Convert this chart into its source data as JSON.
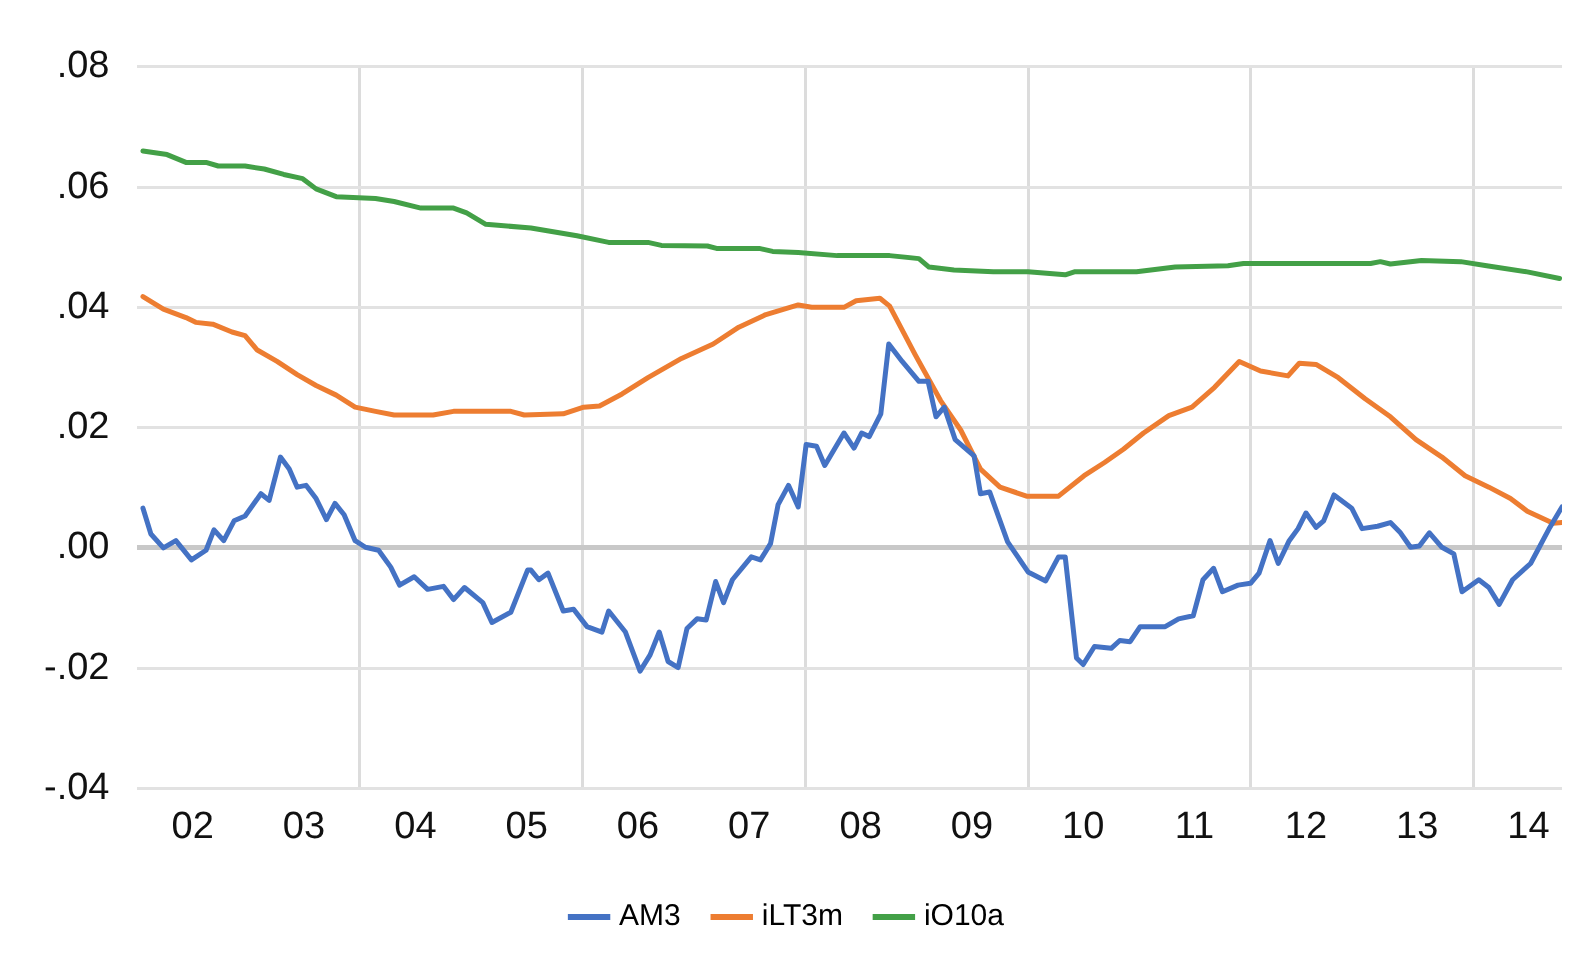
{
  "chart_data": {
    "type": "line",
    "xlim": [
      "2002-01-01",
      "2014-10-19"
    ],
    "xticks": [
      {
        "value": "2002-07-01",
        "label": "02"
      },
      {
        "value": "2003-07-01",
        "label": "03"
      },
      {
        "value": "2004-01-01",
        "label": null
      },
      {
        "value": "2004-07-01",
        "label": "04"
      },
      {
        "value": "2005-07-01",
        "label": "05"
      },
      {
        "value": "2006-01-01",
        "label": null
      },
      {
        "value": "2006-07-01",
        "label": "06"
      },
      {
        "value": "2007-07-01",
        "label": "07"
      },
      {
        "value": "2008-01-01",
        "label": null
      },
      {
        "value": "2008-07-01",
        "label": "08"
      },
      {
        "value": "2009-07-01",
        "label": "09"
      },
      {
        "value": "2010-01-01",
        "label": null
      },
      {
        "value": "2010-07-01",
        "label": "10"
      },
      {
        "value": "2011-07-01",
        "label": "11"
      },
      {
        "value": "2012-01-01",
        "label": null
      },
      {
        "value": "2012-07-01",
        "label": "12"
      },
      {
        "value": "2013-07-01",
        "label": "13"
      },
      {
        "value": "2014-01-01",
        "label": null
      },
      {
        "value": "2014-07-01",
        "label": "14"
      }
    ],
    "ylim": [
      -0.04,
      0.08
    ],
    "yticks": [
      {
        "value": -0.04,
        "label": "-.04"
      },
      {
        "value": -0.02,
        "label": "-.02"
      },
      {
        "value": 0,
        "label": ".00"
      },
      {
        "value": 0.02,
        "label": ".02"
      },
      {
        "value": 0.04,
        "label": ".04"
      },
      {
        "value": 0.06,
        "label": ".06"
      },
      {
        "value": 0.08,
        "label": ".08"
      }
    ],
    "grid": true,
    "legend": "bottom",
    "marker": "none",
    "line_style": "solid",
    "series": [
      {
        "name": "AM3",
        "color": "#4472c4",
        "x": [
          "2002-01-19",
          "2002-02-14",
          "2002-03-27",
          "2002-05-07",
          "2002-06-27",
          "2002-08-14",
          "2002-09-09",
          "2002-10-11",
          "2002-11-14",
          "2002-12-20",
          "2003-02-10",
          "2003-03-09",
          "2003-04-15",
          "2003-05-14",
          "2003-06-09",
          "2003-07-08",
          "2003-08-10",
          "2003-09-13",
          "2003-10-11",
          "2003-11-10",
          "2003-12-16",
          "2004-01-19",
          "2004-03-02",
          "2004-04-11",
          "2004-05-10",
          "2004-06-27",
          "2004-08-10",
          "2004-10-01",
          "2004-11-03",
          "2004-12-09",
          "2005-02-07",
          "2005-03-09",
          "2005-05-10",
          "2005-07-04",
          "2005-07-15",
          "2005-08-10",
          "2005-09-09",
          "2005-10-29",
          "2005-12-02",
          "2006-01-15",
          "2006-03-05",
          "2006-03-27",
          "2006-05-21",
          "2006-07-08",
          "2006-08-10",
          "2006-09-09",
          "2006-10-08",
          "2006-11-10",
          "2006-12-09",
          "2007-01-11",
          "2007-02-10",
          "2007-03-13",
          "2007-04-08",
          "2007-05-07",
          "2007-07-08",
          "2007-08-07",
          "2007-09-09",
          "2007-10-04",
          "2007-11-07",
          "2007-12-09",
          "2008-01-04",
          "2008-02-07",
          "2008-03-05",
          "2008-05-07",
          "2008-06-09",
          "2008-07-04",
          "2008-07-29",
          "2008-09-05",
          "2008-10-01",
          "2008-11-14",
          "2009-01-08",
          "2009-02-07",
          "2009-03-05",
          "2009-04-01",
          "2009-05-07",
          "2009-07-08",
          "2009-07-29",
          "2009-08-28",
          "2009-10-26",
          "2010-01-01",
          "2010-02-28",
          "2010-04-11",
          "2010-05-03",
          "2010-06-09",
          "2010-07-01",
          "2010-08-07",
          "2010-10-01",
          "2010-10-29",
          "2010-12-02",
          "2011-01-04",
          "2011-03-27",
          "2011-05-10",
          "2011-06-27",
          "2011-07-29",
          "2011-09-02",
          "2011-10-01",
          "2011-11-21",
          "2012-01-01",
          "2012-01-29",
          "2012-03-05",
          "2012-04-01",
          "2012-05-07",
          "2012-06-05",
          "2012-07-01",
          "2012-08-03",
          "2012-08-28",
          "2012-10-01",
          "2012-11-28",
          "2013-01-01",
          "2013-02-21",
          "2013-04-04",
          "2013-05-07",
          "2013-06-09",
          "2013-07-08",
          "2013-08-10",
          "2013-09-20",
          "2013-10-29",
          "2013-11-25",
          "2014-01-19",
          "2014-02-21",
          "2014-03-27",
          "2014-05-10",
          "2014-07-08",
          "2014-09-09",
          "2014-10-19"
        ],
        "values": [
          0.0066,
          0.0023,
          0.0,
          0.0012,
          -0.002,
          -0.0004,
          0.003,
          0.0012,
          0.0045,
          0.0053,
          0.009,
          0.0079,
          0.0151,
          0.0131,
          0.0101,
          0.0104,
          0.0082,
          0.0047,
          0.0074,
          0.0055,
          0.0012,
          0.0001,
          -0.0004,
          -0.0032,
          -0.0062,
          -0.0048,
          -0.0069,
          -0.0064,
          -0.0086,
          -0.0066,
          -0.0091,
          -0.0124,
          -0.0107,
          -0.0037,
          -0.0037,
          -0.0053,
          -0.0042,
          -0.0105,
          -0.0102,
          -0.0131,
          -0.014,
          -0.0105,
          -0.014,
          -0.0205,
          -0.0178,
          -0.014,
          -0.0189,
          -0.0199,
          -0.0134,
          -0.0118,
          -0.012,
          -0.0056,
          -0.0091,
          -0.0053,
          -0.0015,
          -0.002,
          0.0007,
          0.0072,
          0.0104,
          0.0068,
          0.0172,
          0.0169,
          0.0137,
          0.0191,
          0.0166,
          0.0191,
          0.0185,
          0.0223,
          0.0339,
          0.031,
          0.0277,
          0.0277,
          0.0218,
          0.0234,
          0.018,
          0.0153,
          0.009,
          0.0093,
          0.001,
          -0.004,
          -0.0055,
          -0.0015,
          -0.0015,
          -0.0183,
          -0.0194,
          -0.0164,
          -0.0167,
          -0.0154,
          -0.0156,
          -0.0131,
          -0.0131,
          -0.0118,
          -0.0113,
          -0.0053,
          -0.0034,
          -0.0073,
          -0.0062,
          -0.0059,
          -0.0042,
          0.0012,
          -0.0026,
          0.0012,
          0.0032,
          0.0058,
          0.0034,
          0.0045,
          0.0088,
          0.0066,
          0.0032,
          0.0036,
          0.0042,
          0.0025,
          0.0001,
          0.0003,
          0.0025,
          0.0001,
          -0.001,
          -0.0073,
          -0.0053,
          -0.0066,
          -0.0094,
          -0.0053,
          -0.0026,
          0.0034,
          0.0068
        ]
      },
      {
        "name": "iLT3m",
        "color": "#ed7d31",
        "x": [
          "2002-01-19",
          "2002-03-27",
          "2002-06-09",
          "2002-07-11",
          "2002-09-05",
          "2002-11-07",
          "2002-12-20",
          "2003-01-29",
          "2003-04-04",
          "2003-06-09",
          "2003-08-10",
          "2003-10-15",
          "2003-12-16",
          "2004-02-21",
          "2004-04-22",
          "2004-08-28",
          "2004-11-03",
          "2005-05-10",
          "2005-06-23",
          "2005-10-29",
          "2006-01-04",
          "2006-02-25",
          "2006-05-10",
          "2006-08-03",
          "2006-11-21",
          "2007-03-05",
          "2007-05-28",
          "2007-08-25",
          "2007-12-09",
          "2008-01-22",
          "2008-05-07",
          "2008-06-16",
          "2008-09-02",
          "2008-10-04",
          "2008-12-27",
          "2009-03-20",
          "2009-05-25",
          "2009-07-29",
          "2009-10-01",
          "2009-12-27",
          "2010-04-11",
          "2010-07-04",
          "2010-09-09",
          "2010-11-10",
          "2011-01-15",
          "2011-04-08",
          "2011-06-23",
          "2011-09-05",
          "2011-11-25",
          "2012-02-03",
          "2012-05-03",
          "2012-06-09",
          "2012-08-03",
          "2012-10-15",
          "2013-01-11",
          "2013-04-04",
          "2013-06-27",
          "2013-09-20",
          "2013-12-05",
          "2014-02-21",
          "2014-05-03",
          "2014-06-27",
          "2014-09-20",
          "2014-10-19"
        ],
        "values": [
          0.0418,
          0.0397,
          0.0383,
          0.0375,
          0.0372,
          0.0359,
          0.0353,
          0.0329,
          0.031,
          0.0288,
          0.027,
          0.0254,
          0.0234,
          0.0227,
          0.0221,
          0.0221,
          0.0227,
          0.0227,
          0.0221,
          0.0223,
          0.0234,
          0.0236,
          0.0256,
          0.0283,
          0.0315,
          0.0339,
          0.0367,
          0.0388,
          0.0404,
          0.04,
          0.04,
          0.0411,
          0.0415,
          0.0402,
          0.0321,
          0.0245,
          0.0196,
          0.0131,
          0.0101,
          0.0086,
          0.0086,
          0.012,
          0.0142,
          0.0164,
          0.0191,
          0.022,
          0.0234,
          0.0267,
          0.031,
          0.0294,
          0.0286,
          0.0307,
          0.0305,
          0.0283,
          0.0248,
          0.0218,
          0.018,
          0.0151,
          0.012,
          0.0101,
          0.0082,
          0.0061,
          0.0041,
          0.0042
        ]
      },
      {
        "name": "iO10a",
        "color": "#43a047",
        "x": [
          "2002-01-19",
          "2002-04-08",
          "2002-06-09",
          "2002-08-14",
          "2002-09-23",
          "2002-12-20",
          "2003-02-21",
          "2003-04-26",
          "2003-06-27",
          "2003-08-10",
          "2003-10-15",
          "2004-02-21",
          "2004-04-22",
          "2004-07-19",
          "2004-11-03",
          "2004-12-16",
          "2005-02-17",
          "2005-07-15",
          "2005-12-13",
          "2006-03-27",
          "2006-08-03",
          "2006-09-16",
          "2007-02-14",
          "2007-03-16",
          "2007-08-03",
          "2007-09-16",
          "2007-12-09",
          "2008-04-15",
          "2008-10-04",
          "2009-01-08",
          "2009-02-10",
          "2009-05-03",
          "2009-09-09",
          "2010-01-01",
          "2010-05-03",
          "2010-06-02",
          "2010-12-23",
          "2011-04-29",
          "2011-10-19",
          "2011-12-09",
          "2013-01-29",
          "2013-03-02",
          "2013-04-04",
          "2013-07-15",
          "2013-11-21",
          "2014-02-14",
          "2014-06-27",
          "2014-10-11"
        ],
        "values": [
          0.066,
          0.0654,
          0.0641,
          0.0641,
          0.0635,
          0.0635,
          0.063,
          0.0621,
          0.0614,
          0.0597,
          0.0584,
          0.0581,
          0.0576,
          0.0565,
          0.0565,
          0.0557,
          0.0538,
          0.0532,
          0.0519,
          0.0508,
          0.0508,
          0.0503,
          0.0502,
          0.0498,
          0.0498,
          0.0493,
          0.0491,
          0.0486,
          0.0486,
          0.0481,
          0.0467,
          0.0462,
          0.0459,
          0.0459,
          0.0454,
          0.0459,
          0.0459,
          0.0467,
          0.0469,
          0.0473,
          0.0473,
          0.0476,
          0.0472,
          0.0478,
          0.0476,
          0.0469,
          0.0459,
          0.0448
        ]
      }
    ]
  }
}
